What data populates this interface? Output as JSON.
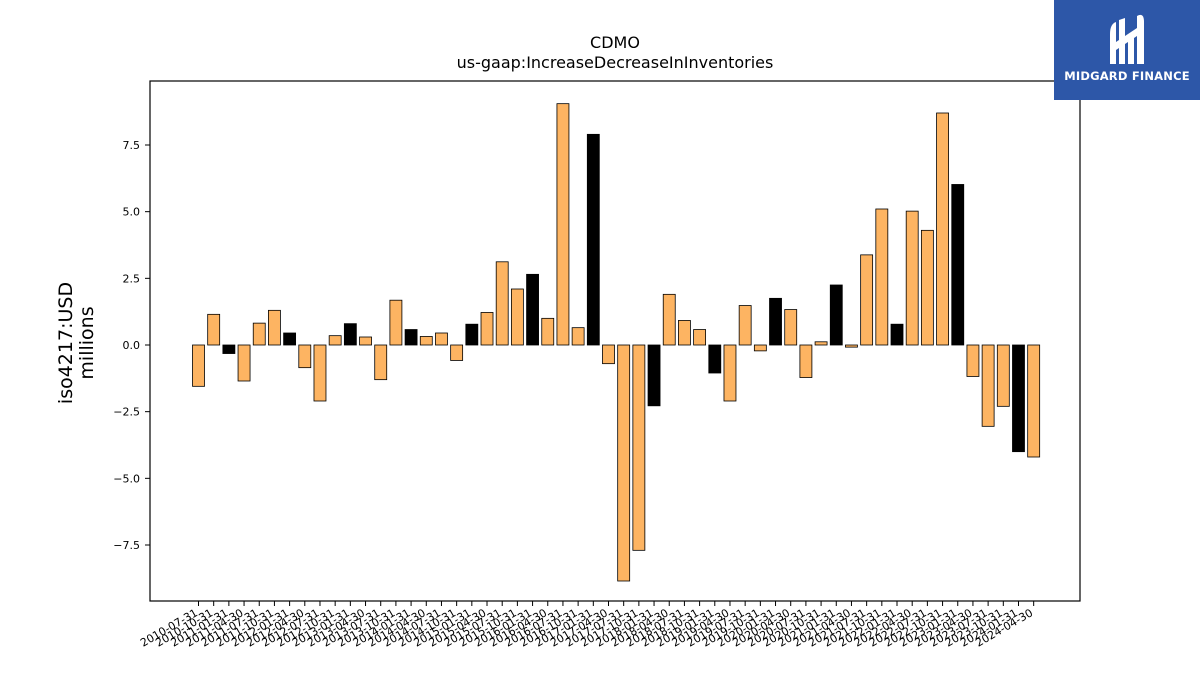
{
  "chart_data": {
    "type": "bar",
    "title": "CDMO",
    "subtitle": "us-gaap:IncreaseDecreaseInInventories",
    "ylabel": "iso4217:USD",
    "ylabel_unit": "millions",
    "ylim": [
      -9.6,
      9.9
    ],
    "yticks": [
      -7.5,
      -5.0,
      -2.5,
      0.0,
      2.5,
      5.0,
      7.5
    ],
    "yticklabels": [
      "−7.5",
      "−5.0",
      "−2.5",
      "0.0",
      "2.5",
      "5.0",
      "7.5"
    ],
    "colors": {
      "quarter": "#fdb462",
      "annual": "#000000"
    },
    "categories": [
      "2010-07-31",
      "2010-10-31",
      "2011-01-31",
      "2011-04-30",
      "2011-07-31",
      "2011-10-31",
      "2012-01-31",
      "2012-04-30",
      "2012-07-31",
      "2012-10-31",
      "2013-01-31",
      "2013-04-30",
      "2013-07-31",
      "2013-10-31",
      "2014-01-31",
      "2014-04-30",
      "2014-07-31",
      "2014-10-31",
      "2015-01-31",
      "2015-04-30",
      "2015-07-31",
      "2015-10-31",
      "2016-01-31",
      "2016-04-30",
      "2016-07-31",
      "2016-10-31",
      "2017-01-31",
      "2017-04-30",
      "2017-07-31",
      "2017-10-31",
      "2018-01-31",
      "2018-04-30",
      "2018-07-31",
      "2018-10-31",
      "2019-01-31",
      "2019-04-30",
      "2019-07-31",
      "2019-10-31",
      "2020-01-31",
      "2020-04-30",
      "2020-07-31",
      "2020-10-31",
      "2021-01-31",
      "2021-04-30",
      "2021-07-31",
      "2021-10-31",
      "2022-01-31",
      "2022-04-30",
      "2022-07-31",
      "2022-10-31",
      "2023-01-31",
      "2023-04-30",
      "2023-07-31",
      "2023-10-31",
      "2024-01-31",
      "2024-04-30"
    ],
    "values": [
      -1.55,
      1.15,
      -0.32,
      -1.35,
      0.82,
      1.3,
      0.45,
      -0.85,
      -2.1,
      0.35,
      0.8,
      0.3,
      -1.3,
      1.68,
      0.58,
      0.32,
      0.45,
      -0.58,
      0.78,
      1.22,
      3.12,
      2.1,
      2.65,
      1.0,
      9.05,
      0.65,
      7.9,
      -0.7,
      -8.85,
      -7.7,
      -2.28,
      1.9,
      0.92,
      0.58,
      -1.05,
      -2.1,
      1.48,
      -0.22,
      1.75,
      1.33,
      -1.22,
      0.12,
      2.25,
      -0.08,
      3.38,
      5.1,
      0.78,
      5.02,
      4.3,
      8.7,
      6.02,
      -1.18,
      -3.05,
      -2.3,
      -4.0,
      -4.2
    ],
    "bar_kind": [
      "q",
      "q",
      "a",
      "q",
      "q",
      "q",
      "a",
      "q",
      "q",
      "q",
      "a",
      "q",
      "q",
      "q",
      "a",
      "q",
      "q",
      "q",
      "a",
      "q",
      "q",
      "q",
      "a",
      "q",
      "q",
      "q",
      "a",
      "q",
      "q",
      "q",
      "a",
      "q",
      "q",
      "q",
      "a",
      "q",
      "q",
      "q",
      "a",
      "q",
      "q",
      "q",
      "a",
      "q",
      "q",
      "q",
      "a",
      "q",
      "q",
      "q",
      "a",
      "q",
      "q",
      "q",
      "a",
      "q"
    ]
  },
  "logo": {
    "text": "MIDGARD FINANCE"
  }
}
